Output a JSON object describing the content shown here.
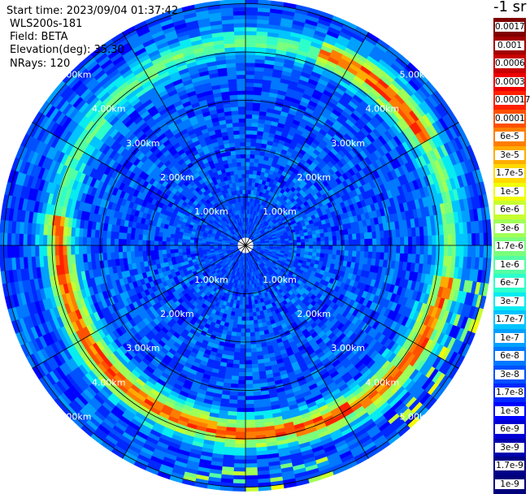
{
  "header": {
    "start_time": "Start time: 2023/09/04 01:37:42",
    "device": "WLS200s-181",
    "field": "Field: BETA",
    "elevation": "Elevation(deg): 35.30",
    "nrays": "NRays: 120"
  },
  "colorbar": {
    "unit_label": "-1 sr",
    "labels": [
      "0.0017",
      "0.001",
      "0.0006",
      "0.0003",
      "0.00017",
      "0.0001",
      "6e-5",
      "3e-5",
      "1.7e-5",
      "1e-5",
      "6e-6",
      "3e-6",
      "1.7e-6",
      "1e-6",
      "6e-7",
      "3e-7",
      "1.7e-7",
      "1e-7",
      "6e-8",
      "3e-8",
      "1.7e-8",
      "1e-8",
      "6e-9",
      "3e-9",
      "1.7e-9",
      "1e-9"
    ],
    "colors": [
      "#7f0000",
      "#a20000",
      "#c80000",
      "#ee0000",
      "#ff2000",
      "#ff5000",
      "#ff7d00",
      "#ffac00",
      "#ffd900",
      "#f1fc06",
      "#c7ff30",
      "#a0ff56",
      "#7aff7d",
      "#53ffa3",
      "#2dffca",
      "#06ecf1",
      "#00c4ff",
      "#00a0ff",
      "#0078ff",
      "#0050ff",
      "#0028ff",
      "#0000ff",
      "#0000d4",
      "#0000ad",
      "#000088",
      "#00007a"
    ]
  },
  "chart_data": {
    "type": "heatmap",
    "projection": "polar-ppi",
    "field": "BETA",
    "elevation_deg": 35.3,
    "n_rays": 120,
    "start_time": "2023/09/04 01:37:42",
    "range_unit": "km",
    "max_range_km": 5.3,
    "range_rings_km": [
      1.0,
      2.0,
      3.0,
      4.0,
      5.0
    ],
    "ring_labels": [
      "1.00km",
      "2.00km",
      "3.00km",
      "4.00km",
      "5.00km"
    ],
    "azimuth_spokes_deg": [
      0,
      30,
      60,
      90,
      120,
      150,
      180,
      210,
      240,
      270,
      300,
      330
    ],
    "scale": "log",
    "value_range": [
      1e-09,
      0.0017
    ],
    "features": [
      {
        "name": "high-backscatter ring",
        "range_km": [
          3.9,
          4.3
        ],
        "value_approx": 6e-05
      },
      {
        "name": "background",
        "value_approx": 3e-08
      }
    ]
  }
}
